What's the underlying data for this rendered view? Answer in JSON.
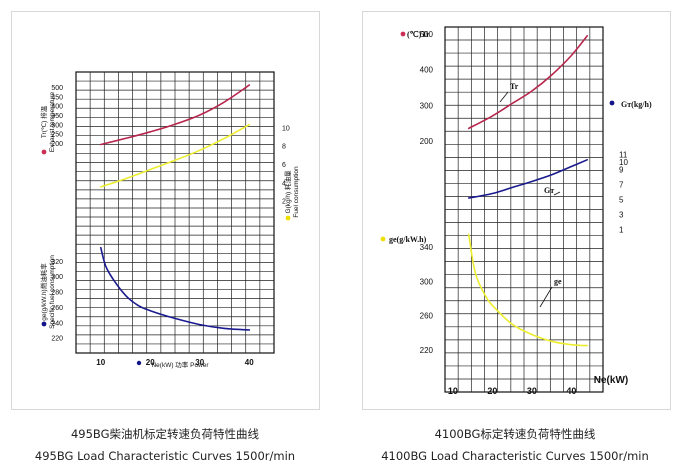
{
  "captions": {
    "left_cn": "495BG柴油机标定转速负荷特性曲线",
    "left_en": "495BG Load Characteristic Curves 1500r/min",
    "right_cn": "4100BG标定转速负荷特性曲线",
    "right_en": "4100BG Load Characteristic Curves 1500r/min"
  },
  "chart_data": [
    {
      "type": "line",
      "title": "495BG Load Characteristic Curves 1500r/min",
      "xlabel": "Ne(kW) 功率 Power",
      "xlim": [
        5,
        45
      ],
      "x_ticks": [
        10,
        20,
        30,
        40
      ],
      "axes": [
        {
          "name": "Tr",
          "label_lines": [
            "Tr(℃) 排温",
            "Exhaust temperature"
          ],
          "ylim": [
            120,
            580
          ],
          "ticks": [
            200,
            250,
            300,
            350,
            400,
            450,
            500
          ],
          "color": "#cc2e56",
          "side": "left",
          "rot_label": true
        },
        {
          "name": "G",
          "label_lines": [
            "G(kg/h) 耗油量",
            "Fuel consumption"
          ],
          "ylim": [
            0,
            12
          ],
          "ticks": [
            2,
            4,
            6,
            8,
            10
          ],
          "color": "#ede000",
          "side": "right",
          "rot_label": true
        },
        {
          "name": "ge",
          "label_lines": [
            "ge(g/kW.h)燃油耗率",
            "Specific fuel consumption"
          ],
          "ylim": [
            200,
            360
          ],
          "ticks": [
            220,
            240,
            260,
            280,
            300,
            320
          ],
          "color": "#14148a",
          "side": "left",
          "rot_label": true
        }
      ],
      "series": [
        {
          "axis": "Tr",
          "color": "#b7264d",
          "x": [
            10,
            15,
            20,
            25,
            30,
            35,
            40
          ],
          "y": [
            192,
            225,
            260,
            300,
            350,
            420,
            510
          ]
        },
        {
          "axis": "G",
          "color": "#eded30",
          "x": [
            10,
            15,
            20,
            25,
            30,
            35,
            40
          ],
          "y": [
            3.5,
            4.4,
            5.4,
            6.4,
            7.5,
            8.8,
            10.3
          ]
        },
        {
          "axis": "ge",
          "color": "#1a1a8f",
          "x": [
            10,
            11,
            12.5,
            15,
            17.5,
            20,
            25,
            30,
            35,
            40
          ],
          "y": [
            337,
            313,
            296,
            275,
            262,
            255,
            245,
            237,
            232,
            230
          ]
        }
      ]
    },
    {
      "type": "line",
      "title": "4100BG Load Characteristic Curves 1500r/min",
      "xlabel": "Ne(kW)",
      "xlim": [
        8,
        48
      ],
      "x_ticks": [
        10,
        20,
        30,
        40
      ],
      "axes": [
        {
          "name": "Tr",
          "label_lines": [
            "(℃)Tr"
          ],
          "ylim": [
            0,
            520
          ],
          "ticks": [
            200,
            300,
            400,
            500
          ],
          "color": "#cc2e56",
          "side": "left",
          "rot_label": false
        },
        {
          "name": "GT",
          "label_lines": [
            "Gт(kg/h)"
          ],
          "ylim": [
            0,
            20
          ],
          "ticks": [
            1,
            3,
            5,
            7,
            9,
            10,
            11
          ],
          "color": "#14148a",
          "side": "right",
          "rot_label": false
        },
        {
          "name": "ge",
          "label_lines": [
            "ge(g/kW.h)"
          ],
          "ylim": [
            200,
            360
          ],
          "ticks": [
            220,
            260,
            300,
            340
          ],
          "color": "#ede000",
          "side": "left",
          "rot_label": false
        }
      ],
      "series": [
        {
          "axis": "Tr",
          "name": "Tr",
          "color": "#b7264d",
          "x": [
            14,
            20,
            25,
            30,
            35,
            40,
            44
          ],
          "y": [
            235,
            270,
            305,
            340,
            385,
            440,
            495
          ]
        },
        {
          "axis": "GT",
          "name": "Gт",
          "color": "#1a1a8f",
          "x": [
            14,
            20,
            25,
            30,
            35,
            40,
            44
          ],
          "y": [
            5.2,
            5.8,
            6.6,
            7.4,
            8.3,
            9.4,
            10.3
          ]
        },
        {
          "axis": "ge",
          "name": "ge",
          "color": "#eded30",
          "x": [
            14,
            15,
            16,
            18,
            20,
            25,
            30,
            35,
            40,
            44
          ],
          "y": [
            355,
            325,
            305,
            285,
            272,
            250,
            238,
            230,
            226,
            225
          ]
        }
      ]
    }
  ]
}
